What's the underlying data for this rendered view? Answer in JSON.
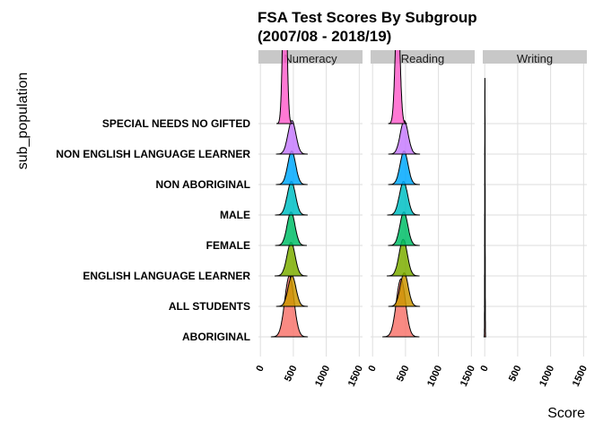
{
  "chart_data": {
    "type": "ridgeline",
    "title_lines": [
      "FSA Test Scores By Subgroup",
      "(2007/08 - 2018/19)"
    ],
    "xlabel": "Score",
    "ylabel": "sub_population",
    "panels": [
      "Numeracy",
      "Reading",
      "Writing"
    ],
    "categories": [
      "SPECIAL NEEDS NO GIFTED",
      "NON ENGLISH LANGUAGE LEARNER",
      "NON ABORIGINAL",
      "MALE",
      "FEMALE",
      "ENGLISH LANGUAGE LEARNER",
      "ALL STUDENTS",
      "ABORIGINAL"
    ],
    "category_colors": [
      "#F8766D",
      "#CD9600",
      "#7CAE00",
      "#00BE67",
      "#00BFC4",
      "#00A9FF",
      "#C77CFF",
      "#FF61CC"
    ],
    "x_ticks": [
      "0",
      "500",
      "1000",
      "1500"
    ],
    "xlim": [
      -30,
      1550
    ],
    "grid": true,
    "legend": "none",
    "strip_color": "#c8c8c8",
    "series": [
      {
        "panel": "Numeracy",
        "modes": [
          {
            "category": "ABORIGINAL",
            "center": 440,
            "width": 70,
            "height": 2.0
          },
          {
            "category": "ALL STUDENTS",
            "center": 480,
            "width": 60,
            "height": 1.0
          },
          {
            "category": "ENGLISH LANGUAGE LEARNER",
            "center": 465,
            "width": 62,
            "height": 1.1
          },
          {
            "category": "FEMALE",
            "center": 465,
            "width": 60,
            "height": 1.1
          },
          {
            "category": "MALE",
            "center": 470,
            "width": 62,
            "height": 1.1
          },
          {
            "category": "NON ABORIGINAL",
            "center": 475,
            "width": 60,
            "height": 1.1
          },
          {
            "category": "NON ENGLISH LANGUAGE LEARNER",
            "center": 478,
            "width": 60,
            "height": 1.1
          },
          {
            "category": "SPECIAL NEEDS NO GIFTED",
            "center": 370,
            "width": 30,
            "height": 5.5
          }
        ]
      },
      {
        "panel": "Reading",
        "modes": [
          {
            "category": "ABORIGINAL",
            "center": 430,
            "width": 70,
            "height": 1.9
          },
          {
            "category": "ALL STUDENTS",
            "center": 480,
            "width": 60,
            "height": 1.1
          },
          {
            "category": "ENGLISH LANGUAGE LEARNER",
            "center": 465,
            "width": 62,
            "height": 1.2
          },
          {
            "category": "FEMALE",
            "center": 475,
            "width": 60,
            "height": 1.1
          },
          {
            "category": "MALE",
            "center": 470,
            "width": 62,
            "height": 1.1
          },
          {
            "category": "NON ABORIGINAL",
            "center": 478,
            "width": 60,
            "height": 1.1
          },
          {
            "category": "NON ENGLISH LANGUAGE LEARNER",
            "center": 480,
            "width": 60,
            "height": 1.1
          },
          {
            "category": "SPECIAL NEEDS NO GIFTED",
            "center": 380,
            "width": 35,
            "height": 4.0
          }
        ]
      },
      {
        "panel": "Writing",
        "modes": [
          {
            "category": "ABORIGINAL",
            "center": 3,
            "width": 3,
            "height": 8.5
          }
        ]
      }
    ]
  }
}
